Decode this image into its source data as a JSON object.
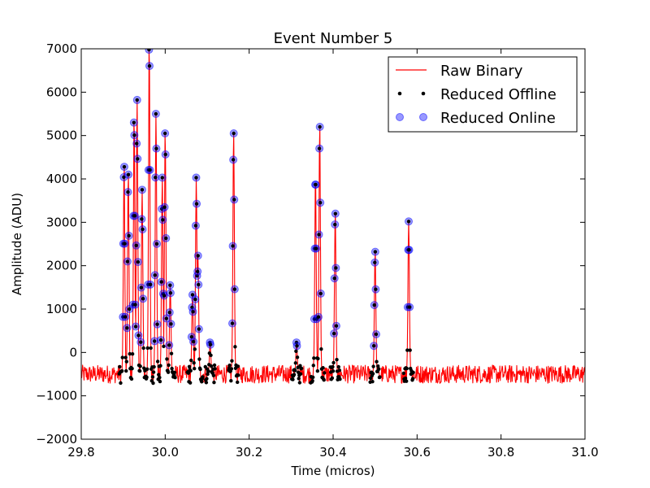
{
  "chart_data": {
    "type": "line",
    "title": "Event Number 5",
    "xlabel": "Time (micros)",
    "ylabel": "Amplitude (ADU)",
    "xlim": [
      29.8,
      31.0
    ],
    "ylim": [
      -2000,
      7000
    ],
    "xticks": [
      29.8,
      30.0,
      30.2,
      30.4,
      30.6,
      30.8,
      31.0
    ],
    "xtick_labels": [
      "29.8",
      "30.0",
      "30.2",
      "30.4",
      "30.6",
      "30.8",
      "31.0"
    ],
    "yticks": [
      -2000,
      -1000,
      0,
      1000,
      2000,
      3000,
      4000,
      5000,
      6000,
      7000
    ],
    "ytick_labels": [
      "−2000",
      "−1000",
      "0",
      "1000",
      "2000",
      "3000",
      "4000",
      "5000",
      "6000",
      "7000"
    ],
    "grid": false,
    "legend_position": "top-right",
    "baseline": -500,
    "series": [
      {
        "name": "Raw Binary",
        "kind": "line",
        "color": "#ff0000"
      },
      {
        "name": "Reduced Offline",
        "kind": "marker",
        "color": "#000000"
      },
      {
        "name": "Reduced Online",
        "kind": "marker",
        "color": "#0000ff",
        "alpha": 0.4
      }
    ],
    "peaks": [
      {
        "x": 29.902,
        "y": 4280
      },
      {
        "x": 29.912,
        "y": 4100
      },
      {
        "x": 29.926,
        "y": 5300
      },
      {
        "x": 29.933,
        "y": 5820
      },
      {
        "x": 29.945,
        "y": 3750
      },
      {
        "x": 29.962,
        "y": 6980
      },
      {
        "x": 29.978,
        "y": 5500
      },
      {
        "x": 29.993,
        "y": 4030
      },
      {
        "x": 30.0,
        "y": 5050
      },
      {
        "x": 30.012,
        "y": 1550
      },
      {
        "x": 30.065,
        "y": 1330
      },
      {
        "x": 30.074,
        "y": 4030
      },
      {
        "x": 30.078,
        "y": 2230
      },
      {
        "x": 30.107,
        "y": 230
      },
      {
        "x": 30.163,
        "y": 5050
      },
      {
        "x": 30.313,
        "y": 230
      },
      {
        "x": 30.358,
        "y": 4100
      },
      {
        "x": 30.368,
        "y": 5200
      },
      {
        "x": 30.405,
        "y": 3200
      },
      {
        "x": 30.5,
        "y": 2320
      },
      {
        "x": 30.58,
        "y": 3020
      }
    ]
  }
}
